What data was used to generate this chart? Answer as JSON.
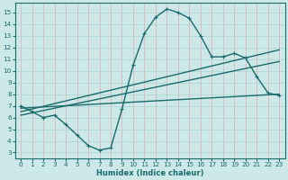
{
  "xlabel": "Humidex (Indice chaleur)",
  "bg_color": "#cce8e8",
  "grid_color_h": "#a8d4d4",
  "grid_color_v": "#e8aaaa",
  "line_color": "#1a6b6b",
  "xlim": [
    -0.5,
    23.5
  ],
  "ylim": [
    2.5,
    15.8
  ],
  "xticks": [
    0,
    1,
    2,
    3,
    4,
    5,
    6,
    7,
    8,
    9,
    10,
    11,
    12,
    13,
    14,
    15,
    16,
    17,
    18,
    19,
    20,
    21,
    22,
    23
  ],
  "yticks": [
    3,
    4,
    5,
    6,
    7,
    8,
    9,
    10,
    11,
    12,
    13,
    14,
    15
  ],
  "line1_x": [
    0,
    1,
    2,
    3,
    4,
    5,
    6,
    7,
    8,
    9,
    10,
    11,
    12,
    13,
    14,
    15,
    16,
    17,
    18,
    19,
    20,
    21,
    22,
    23
  ],
  "line1_y": [
    7.0,
    6.5,
    6.0,
    6.2,
    5.4,
    4.5,
    3.6,
    3.2,
    3.4,
    6.7,
    10.5,
    13.2,
    14.6,
    15.3,
    15.0,
    14.5,
    13.0,
    11.2,
    11.2,
    11.5,
    11.1,
    9.5,
    8.1,
    7.9
  ],
  "line2_x": [
    0,
    23
  ],
  "line2_y": [
    6.8,
    8.0
  ],
  "line3_x": [
    0,
    23
  ],
  "line3_y": [
    6.5,
    11.8
  ],
  "line4_x": [
    0,
    23
  ],
  "line4_y": [
    6.2,
    10.8
  ]
}
